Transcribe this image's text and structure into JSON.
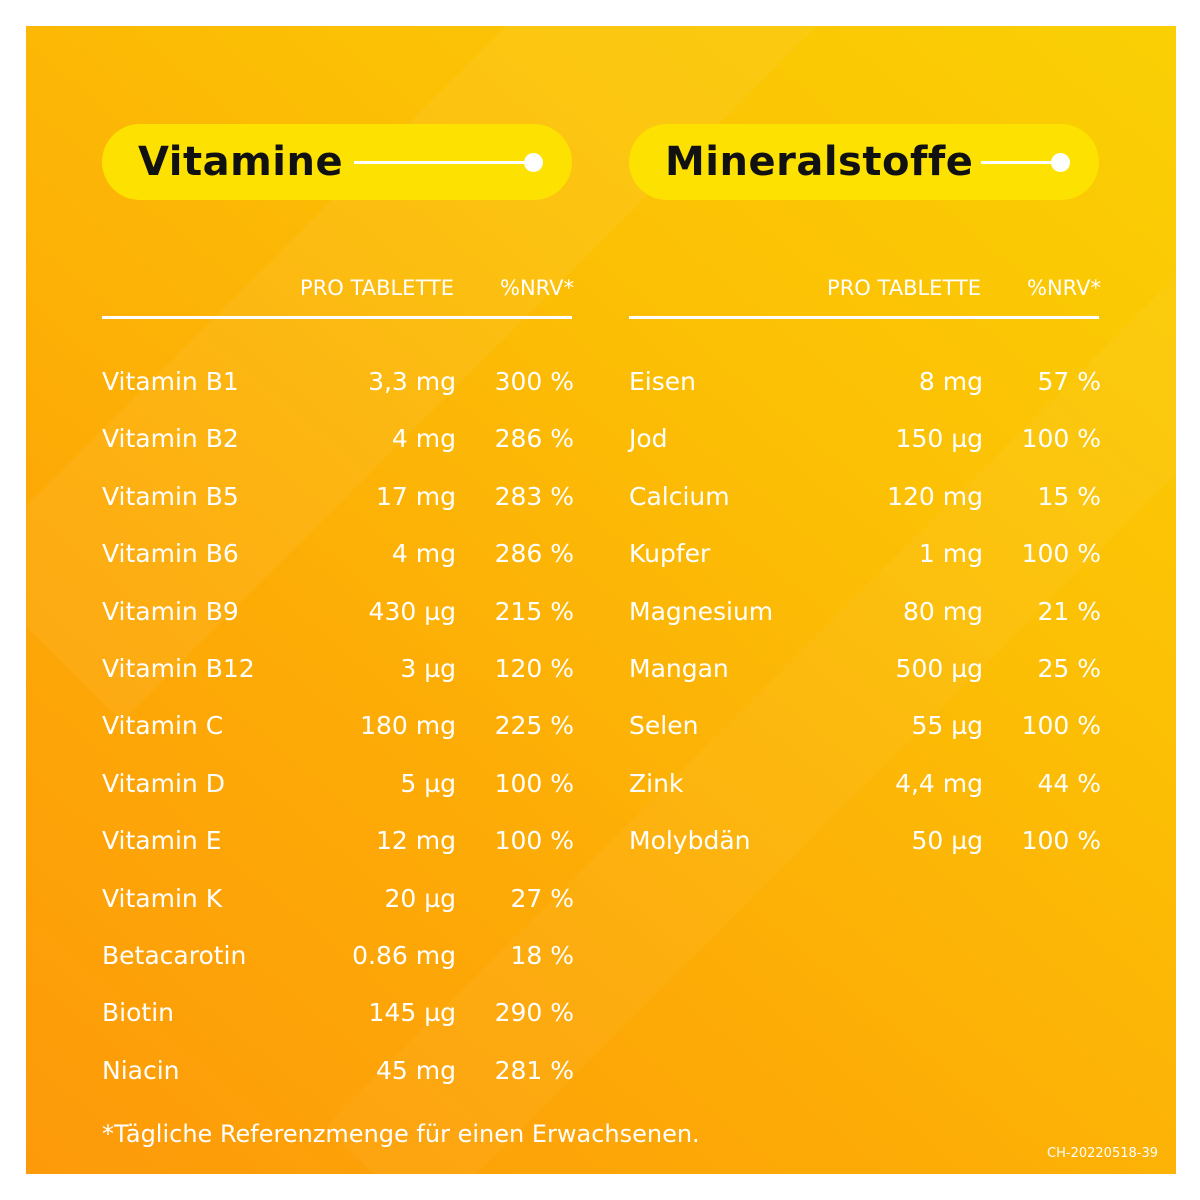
{
  "vitamine": {
    "title": "Vitamine",
    "col_amount": "PRO TABLETTE",
    "col_nrv": "%NRV*",
    "rows": [
      {
        "name": "Vitamin B1",
        "amount": "3,3 mg",
        "nrv": "300 %"
      },
      {
        "name": "Vitamin B2",
        "amount": "4 mg",
        "nrv": "286 %"
      },
      {
        "name": "Vitamin B5",
        "amount": "17 mg",
        "nrv": "283 %"
      },
      {
        "name": "Vitamin B6",
        "amount": "4 mg",
        "nrv": "286 %"
      },
      {
        "name": "Vitamin B9",
        "amount": "430 µg",
        "nrv": "215 %"
      },
      {
        "name": "Vitamin B12",
        "amount": "3 µg",
        "nrv": "120 %"
      },
      {
        "name": "Vitamin C",
        "amount": "180 mg",
        "nrv": "225 %"
      },
      {
        "name": "Vitamin D",
        "amount": "5 µg",
        "nrv": "100 %"
      },
      {
        "name": "Vitamin E",
        "amount": "12 mg",
        "nrv": "100 %"
      },
      {
        "name": "Vitamin K",
        "amount": "20 µg",
        "nrv": "27 %"
      },
      {
        "name": "Betacarotin",
        "amount": "0.86 mg",
        "nrv": "18 %"
      },
      {
        "name": "Biotin",
        "amount": "145 µg",
        "nrv": "290 %"
      },
      {
        "name": "Niacin",
        "amount": "45 mg",
        "nrv": "281 %"
      }
    ]
  },
  "mineralstoffe": {
    "title": "Mineralstoffe",
    "col_amount": "PRO TABLETTE",
    "col_nrv": "%NRV*",
    "rows": [
      {
        "name": "Eisen",
        "amount": "8 mg",
        "nrv": "57 %"
      },
      {
        "name": "Jod",
        "amount": "150 µg",
        "nrv": "100 %"
      },
      {
        "name": "Calcium",
        "amount": "120 mg",
        "nrv": "15 %"
      },
      {
        "name": "Kupfer",
        "amount": "1 mg",
        "nrv": "100 %"
      },
      {
        "name": "Magnesium",
        "amount": "80 mg",
        "nrv": "21 %"
      },
      {
        "name": "Mangan",
        "amount": "500 µg",
        "nrv": "25 %"
      },
      {
        "name": "Selen",
        "amount": "55 µg",
        "nrv": "100 %"
      },
      {
        "name": "Zink",
        "amount": "4,4 mg",
        "nrv": "44 %"
      },
      {
        "name": "Molybdän",
        "amount": "50 µg",
        "nrv": "100 %"
      }
    ]
  },
  "footnote": "*Tägliche Referenzmenge für einen Erwachsenen.",
  "code": "CH-20220518-39",
  "colors": {
    "pill": "#fde100",
    "text": "#ffffff",
    "title": "#111111",
    "background_from": "#fd9a0a",
    "background_to": "#fad004"
  }
}
